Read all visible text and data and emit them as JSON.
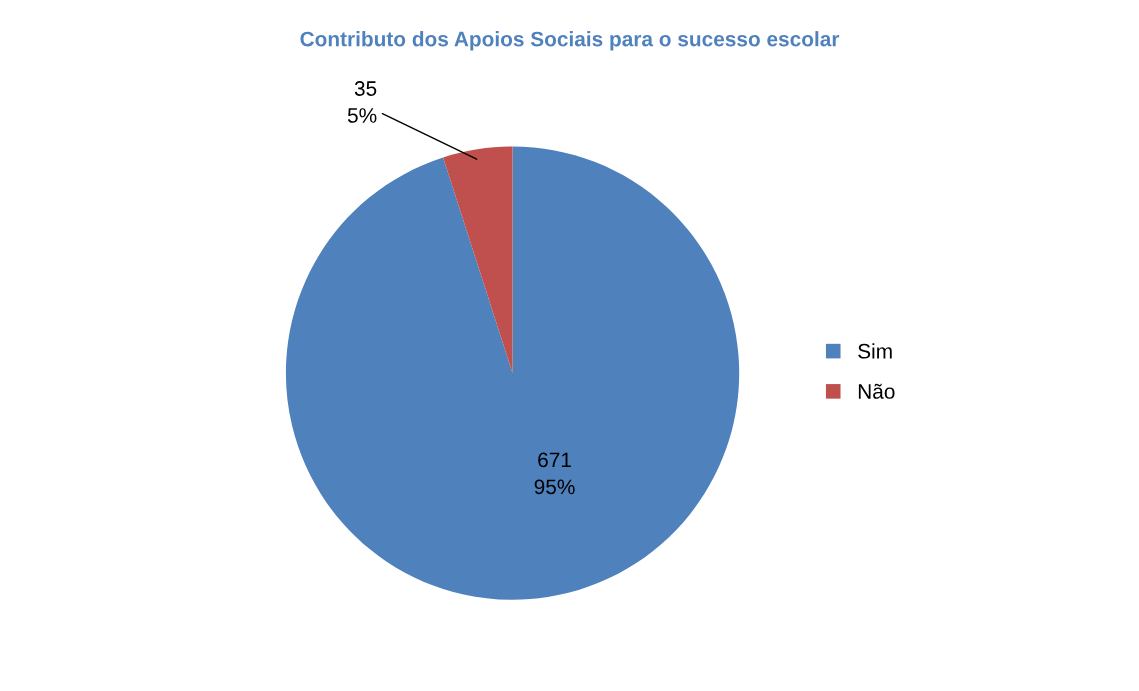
{
  "chart_data": {
    "type": "pie",
    "title": "Contributo dos Apoios Sociais para o sucesso escolar",
    "categories": [
      "Sim",
      "Não"
    ],
    "values": [
      671,
      35
    ],
    "colors": [
      "#4f81bd",
      "#c0504d"
    ],
    "value_labels": [
      "671\n95%",
      "35\n5%"
    ],
    "legend": "right"
  }
}
